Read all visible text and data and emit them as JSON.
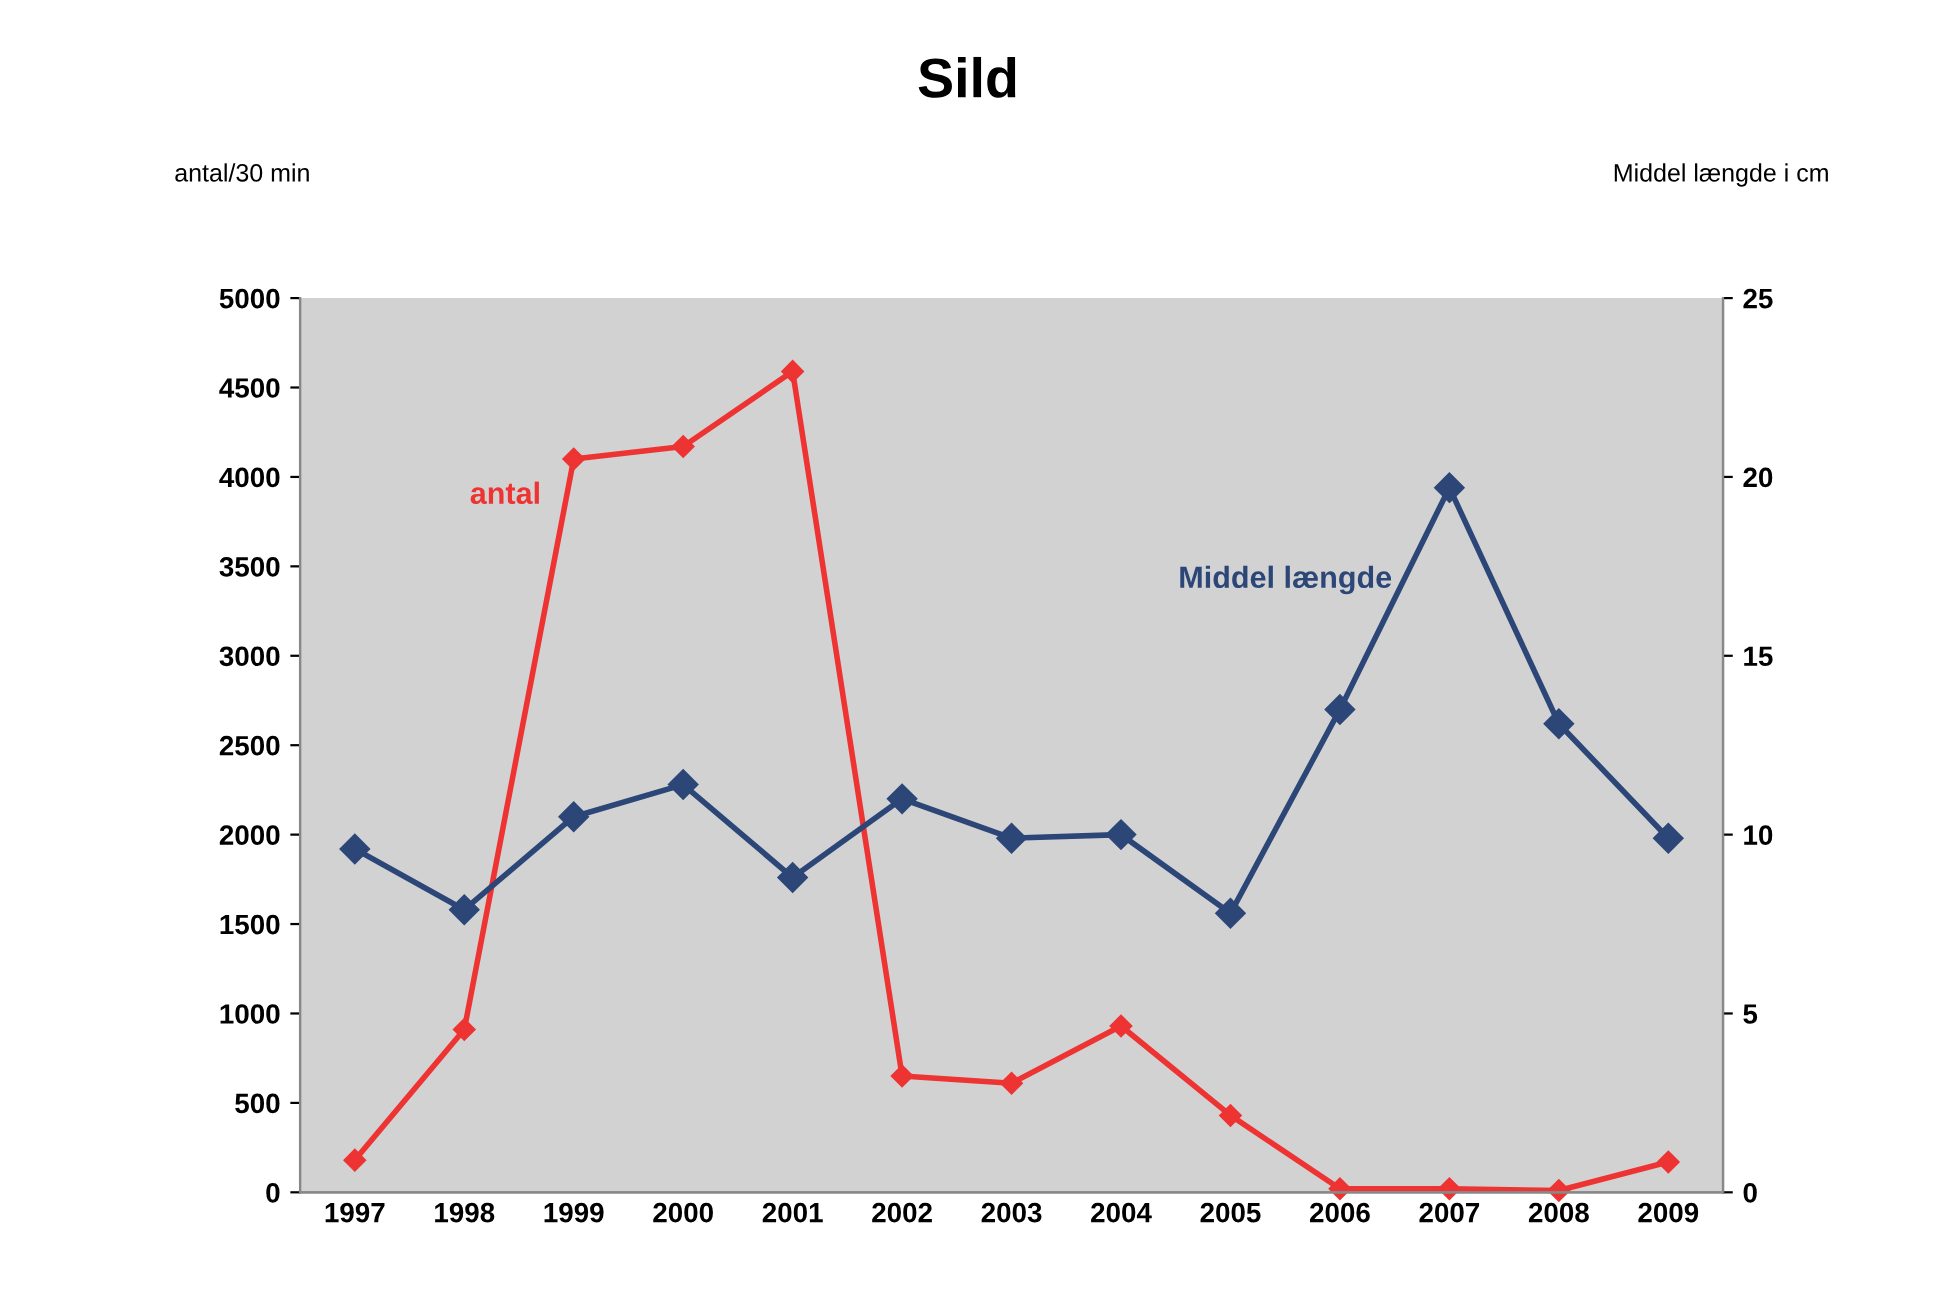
{
  "chart_data": {
    "type": "line",
    "title": "Sild",
    "ylabel": "antal/30 min",
    "y2label": "Middel længde i cm",
    "categories": [
      "1997",
      "1998",
      "1999",
      "2000",
      "2001",
      "2002",
      "2003",
      "2004",
      "2005",
      "2006",
      "2007",
      "2008",
      "2009"
    ],
    "series": [
      {
        "name": "antal",
        "color": "#ee3333",
        "marker": "diamond",
        "values": [
          180,
          910,
          4100,
          4170,
          4590,
          650,
          610,
          930,
          430,
          20,
          20,
          10,
          170
        ]
      },
      {
        "name": "Middel længde",
        "color": "#2b4677",
        "marker": "diamond",
        "axis": "y2",
        "values": [
          9.6,
          7.9,
          10.5,
          11.4,
          8.8,
          11.0,
          9.9,
          10.0,
          7.8,
          13.5,
          19.7,
          13.1,
          9.9
        ]
      }
    ],
    "ylim": [
      0,
      5000
    ],
    "yticks": [
      0,
      500,
      1000,
      1500,
      2000,
      2500,
      3000,
      3500,
      4000,
      4500,
      5000
    ],
    "y2lim": [
      0,
      25
    ],
    "y2ticks": [
      0,
      5,
      10,
      15,
      20,
      25
    ],
    "grid": false,
    "legend": false
  }
}
